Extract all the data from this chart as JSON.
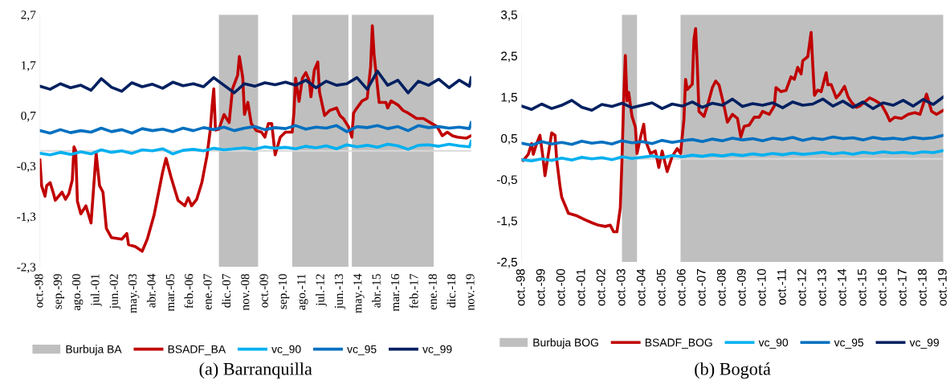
{
  "chart_data": [
    {
      "type": "line",
      "title": "(a) Barranquilla",
      "legend": "bottom",
      "marker": "none",
      "line_style": "solid",
      "grid": false,
      "xlim": [
        "1998-10",
        "2019-11"
      ],
      "xticks": [
        {
          "value": "1998-10",
          "label": "oct.-98"
        },
        {
          "value": "1999-09",
          "label": "sep.-99"
        },
        {
          "value": "2000-08",
          "label": "ago.-00"
        },
        {
          "value": "2001-07",
          "label": "jul.-01"
        },
        {
          "value": "2002-06",
          "label": "jun.-02"
        },
        {
          "value": "2003-05",
          "label": "may.-03"
        },
        {
          "value": "2004-04",
          "label": "abr.-04"
        },
        {
          "value": "2005-03",
          "label": "mar.-05"
        },
        {
          "value": "2006-02",
          "label": "feb.-06"
        },
        {
          "value": "2007-01",
          "label": "ene.-07"
        },
        {
          "value": "2007-12",
          "label": "dic.-07"
        },
        {
          "value": "2008-11",
          "label": "nov.-08"
        },
        {
          "value": "2009-10",
          "label": "oct.-09"
        },
        {
          "value": "2010-09",
          "label": "sep.-10"
        },
        {
          "value": "2011-08",
          "label": "ago.-11"
        },
        {
          "value": "2012-07",
          "label": "jul.-12"
        },
        {
          "value": "2013-06",
          "label": "jun.-13"
        },
        {
          "value": "2014-05",
          "label": "may.-14"
        },
        {
          "value": "2015-04",
          "label": "abr.-15"
        },
        {
          "value": "2016-03",
          "label": "mar.-16"
        },
        {
          "value": "2017-02",
          "label": "feb.-17"
        },
        {
          "value": "2018-01",
          "label": "ene.-18"
        },
        {
          "value": "2018-12",
          "label": "dic.-18"
        },
        {
          "value": "2019-11",
          "label": "nov.-19"
        }
      ],
      "ylim": [
        -2.3,
        2.7
      ],
      "yticks": [
        {
          "value": -2.3,
          "label": "-2,3"
        },
        {
          "value": -1.3,
          "label": "-1,3"
        },
        {
          "value": -0.3,
          "label": "-0,3"
        },
        {
          "value": 0.7,
          "label": "0,7"
        },
        {
          "value": 1.7,
          "label": "1,7"
        },
        {
          "value": 2.7,
          "label": "2,7"
        }
      ],
      "ref_lines": [
        {
          "axis": "y",
          "value": 0,
          "color": "#d9d9d9"
        }
      ],
      "bands": [
        {
          "axis": "x",
          "from": "2007-07",
          "to": "2009-06",
          "label": "Burbuja BA",
          "color": "#bfbfbf"
        },
        {
          "axis": "x",
          "from": "2011-02",
          "to": "2013-11",
          "color": "#bfbfbf"
        },
        {
          "axis": "x",
          "from": "2014-01",
          "to": "2018-01",
          "color": "#bfbfbf"
        }
      ],
      "series": [
        {
          "name": "BSADF_BA",
          "color": "#c00000",
          "x": [
            "1998-10",
            "1998-11",
            "1999-01",
            "1999-02",
            "1999-04",
            "1999-06",
            "1999-07",
            "1999-09",
            "1999-11",
            "2000-01",
            "2000-03",
            "2000-05",
            "2000-06",
            "2000-07",
            "2000-08",
            "2000-10",
            "2001-01",
            "2001-04",
            "2001-07",
            "2001-09",
            "2001-11",
            "2002-01",
            "2002-04",
            "2002-10",
            "2003-01",
            "2003-02",
            "2003-06",
            "2003-10",
            "2004-01",
            "2004-05",
            "2004-10",
            "2004-12",
            "2005-03",
            "2005-07",
            "2005-11",
            "2006-01",
            "2006-03",
            "2006-06",
            "2006-09",
            "2006-12",
            "2007-02",
            "2007-03",
            "2007-04",
            "2007-05",
            "2007-07",
            "2007-10",
            "2008-01",
            "2008-03",
            "2008-06",
            "2008-07",
            "2008-09",
            "2008-10",
            "2008-12",
            "2009-02",
            "2009-05",
            "2009-08",
            "2009-10",
            "2009-12",
            "2010-02",
            "2010-04",
            "2010-07",
            "2010-10",
            "2011-02",
            "2011-03",
            "2011-04",
            "2011-06",
            "2011-08",
            "2011-10",
            "2011-12",
            "2012-01",
            "2012-03",
            "2012-05",
            "2012-06",
            "2012-09",
            "2012-12",
            "2013-04",
            "2013-06",
            "2013-08",
            "2013-11",
            "2014-01",
            "2014-02",
            "2014-04",
            "2014-07",
            "2014-10",
            "2014-12",
            "2015-01",
            "2015-02",
            "2015-05",
            "2015-09",
            "2015-10",
            "2015-12",
            "2016-04",
            "2016-07",
            "2016-10",
            "2017-03",
            "2017-07",
            "2017-12",
            "2018-03",
            "2018-06",
            "2018-09",
            "2018-12",
            "2019-03",
            "2019-08",
            "2019-11"
          ],
          "values": [
            -0.18,
            -0.69,
            -0.9,
            -0.69,
            -0.63,
            -0.85,
            -0.98,
            -0.9,
            -0.82,
            -0.96,
            -0.85,
            -0.58,
            0.08,
            0.0,
            -1.0,
            -1.25,
            -1.09,
            -1.43,
            -0.05,
            -0.69,
            -0.82,
            -1.54,
            -1.72,
            -1.75,
            -1.64,
            -1.86,
            -1.9,
            -1.99,
            -1.75,
            -1.27,
            -0.42,
            -0.15,
            -0.53,
            -0.98,
            -1.09,
            -0.93,
            -1.09,
            -0.96,
            -0.63,
            -0.1,
            0.43,
            0.88,
            1.23,
            0.41,
            0.43,
            0.72,
            0.56,
            1.23,
            1.5,
            1.87,
            1.45,
            0.72,
            0.96,
            0.54,
            0.4,
            0.37,
            0.27,
            0.54,
            0.54,
            -0.08,
            0.27,
            0.37,
            0.37,
            0.75,
            1.44,
            0.98,
            1.44,
            1.55,
            1.39,
            1.07,
            1.6,
            1.76,
            1.17,
            0.7,
            0.8,
            0.85,
            0.7,
            0.64,
            0.48,
            0.27,
            0.75,
            0.85,
            0.99,
            1.04,
            1.66,
            2.48,
            1.92,
            0.96,
            0.96,
            0.85,
            0.99,
            0.91,
            0.8,
            0.75,
            0.64,
            0.64,
            0.54,
            0.48,
            0.3,
            0.37,
            0.3,
            0.27,
            0.25,
            0.3
          ]
        },
        {
          "name": "vc_90",
          "color": "#00b0f0",
          "x": [
            "1998-10",
            "1999-04",
            "1999-10",
            "2000-04",
            "2000-10",
            "2001-04",
            "2001-10",
            "2002-04",
            "2002-10",
            "2003-04",
            "2003-10",
            "2004-04",
            "2004-10",
            "2005-04",
            "2005-10",
            "2006-04",
            "2006-10",
            "2007-04",
            "2007-10",
            "2008-04",
            "2008-10",
            "2009-04",
            "2009-10",
            "2010-04",
            "2010-10",
            "2011-04",
            "2011-10",
            "2012-04",
            "2012-10",
            "2013-04",
            "2013-10",
            "2014-04",
            "2014-10",
            "2015-04",
            "2015-10",
            "2016-04",
            "2016-10",
            "2017-04",
            "2017-10",
            "2018-04",
            "2018-10",
            "2019-04",
            "2019-10",
            "2019-11"
          ],
          "values": [
            -0.05,
            -0.08,
            -0.03,
            -0.07,
            -0.02,
            -0.06,
            0.02,
            -0.03,
            0.0,
            -0.05,
            0.02,
            0.0,
            0.04,
            -0.06,
            0.01,
            0.03,
            0.0,
            0.05,
            0.02,
            0.04,
            0.06,
            0.03,
            0.08,
            0.05,
            0.07,
            0.04,
            0.09,
            0.06,
            0.1,
            0.04,
            0.12,
            0.08,
            0.11,
            0.07,
            0.13,
            0.1,
            0.03,
            0.11,
            0.12,
            0.09,
            0.13,
            0.1,
            0.08,
            0.19
          ]
        },
        {
          "name": "vc_95",
          "color": "#0070c0",
          "x": [
            "1998-10",
            "1999-04",
            "1999-10",
            "2000-04",
            "2000-10",
            "2001-04",
            "2001-10",
            "2002-04",
            "2002-10",
            "2003-04",
            "2003-10",
            "2004-04",
            "2004-10",
            "2005-04",
            "2005-10",
            "2006-04",
            "2006-10",
            "2007-04",
            "2007-10",
            "2008-04",
            "2008-10",
            "2009-04",
            "2009-10",
            "2010-04",
            "2010-10",
            "2011-04",
            "2011-10",
            "2012-04",
            "2012-10",
            "2013-04",
            "2013-10",
            "2014-04",
            "2014-10",
            "2015-04",
            "2015-10",
            "2016-04",
            "2016-10",
            "2017-04",
            "2017-10",
            "2018-04",
            "2018-10",
            "2019-04",
            "2019-10",
            "2019-11"
          ],
          "values": [
            0.4,
            0.35,
            0.42,
            0.36,
            0.4,
            0.37,
            0.45,
            0.38,
            0.42,
            0.35,
            0.44,
            0.4,
            0.43,
            0.38,
            0.45,
            0.4,
            0.46,
            0.42,
            0.47,
            0.4,
            0.45,
            0.48,
            0.42,
            0.46,
            0.44,
            0.5,
            0.43,
            0.47,
            0.45,
            0.5,
            0.38,
            0.48,
            0.46,
            0.5,
            0.44,
            0.48,
            0.4,
            0.5,
            0.46,
            0.48,
            0.45,
            0.47,
            0.44,
            0.56
          ]
        },
        {
          "name": "vc_99",
          "color": "#002060",
          "x": [
            "1998-10",
            "1999-04",
            "1999-10",
            "2000-04",
            "2000-10",
            "2001-04",
            "2001-10",
            "2002-04",
            "2002-10",
            "2003-04",
            "2003-10",
            "2004-04",
            "2004-10",
            "2005-04",
            "2005-10",
            "2006-04",
            "2006-10",
            "2007-04",
            "2007-10",
            "2008-04",
            "2008-10",
            "2009-04",
            "2009-10",
            "2010-04",
            "2010-10",
            "2011-04",
            "2011-10",
            "2012-04",
            "2012-10",
            "2013-04",
            "2013-10",
            "2014-04",
            "2014-10",
            "2015-04",
            "2015-10",
            "2016-04",
            "2016-10",
            "2017-04",
            "2017-10",
            "2018-04",
            "2018-10",
            "2019-04",
            "2019-10",
            "2019-11"
          ],
          "values": [
            1.28,
            1.22,
            1.33,
            1.25,
            1.3,
            1.2,
            1.43,
            1.26,
            1.18,
            1.35,
            1.27,
            1.32,
            1.24,
            1.36,
            1.29,
            1.33,
            1.27,
            1.45,
            1.3,
            1.15,
            1.33,
            1.28,
            1.35,
            1.31,
            1.36,
            1.3,
            1.4,
            1.25,
            1.38,
            1.3,
            1.33,
            1.45,
            1.22,
            1.58,
            1.3,
            1.4,
            1.15,
            1.38,
            1.3,
            1.42,
            1.25,
            1.4,
            1.28,
            1.45
          ]
        }
      ]
    },
    {
      "type": "line",
      "title": "(b) Bogotá",
      "legend": "bottom",
      "marker": "none",
      "line_style": "solid",
      "grid": false,
      "xlim": [
        "1998-10",
        "2019-10"
      ],
      "xticks": [
        {
          "value": "1998-10",
          "label": "oct.-98"
        },
        {
          "value": "1999-10",
          "label": "oct.-99"
        },
        {
          "value": "2000-10",
          "label": "oct.-00"
        },
        {
          "value": "2001-10",
          "label": "oct.-01"
        },
        {
          "value": "2002-10",
          "label": "oct.-02"
        },
        {
          "value": "2003-10",
          "label": "oct.-03"
        },
        {
          "value": "2004-10",
          "label": "oct.-04"
        },
        {
          "value": "2005-10",
          "label": "oct.-05"
        },
        {
          "value": "2006-10",
          "label": "oct.-06"
        },
        {
          "value": "2007-10",
          "label": "oct.-07"
        },
        {
          "value": "2008-10",
          "label": "oct.-08"
        },
        {
          "value": "2009-10",
          "label": "oct.-09"
        },
        {
          "value": "2010-10",
          "label": "oct.-10"
        },
        {
          "value": "2011-10",
          "label": "oct.-11"
        },
        {
          "value": "2012-10",
          "label": "oct.-12"
        },
        {
          "value": "2013-10",
          "label": "oct.-13"
        },
        {
          "value": "2014-10",
          "label": "oct.-14"
        },
        {
          "value": "2015-10",
          "label": "oct.-15"
        },
        {
          "value": "2016-10",
          "label": "oct.-16"
        },
        {
          "value": "2017-10",
          "label": "oct.-17"
        },
        {
          "value": "2018-10",
          "label": "oct.-18"
        },
        {
          "value": "2019-10",
          "label": "oct.-19"
        }
      ],
      "ylim": [
        -2.5,
        3.5
      ],
      "yticks": [
        {
          "value": -2.5,
          "label": "-2,5"
        },
        {
          "value": -1.5,
          "label": "-1,5"
        },
        {
          "value": -0.5,
          "label": "-0,5"
        },
        {
          "value": 0.5,
          "label": "0,5"
        },
        {
          "value": 1.5,
          "label": "1,5"
        },
        {
          "value": 2.5,
          "label": "2,5"
        },
        {
          "value": 3.5,
          "label": "3,5"
        }
      ],
      "ref_lines": [
        {
          "axis": "y",
          "value": 0,
          "color": "#d9d9d9"
        }
      ],
      "bands": [
        {
          "axis": "x",
          "from": "2003-10",
          "to": "2004-07",
          "label": "Burbuja BOG",
          "color": "#bfbfbf"
        },
        {
          "axis": "x",
          "from": "2006-09",
          "to": "2019-10",
          "color": "#bfbfbf"
        }
      ],
      "series": [
        {
          "name": "BSADF_BOG",
          "color": "#c00000",
          "x": [
            "1998-10",
            "1998-11",
            "1999-02",
            "1999-04",
            "1999-05",
            "1999-07",
            "1999-09",
            "1999-11",
            "1999-12",
            "2000-02",
            "2000-04",
            "2000-06",
            "2000-07",
            "2000-09",
            "2000-10",
            "2001-02",
            "2001-07",
            "2001-12",
            "2002-04",
            "2002-08",
            "2002-12",
            "2003-03",
            "2003-05",
            "2003-07",
            "2003-09",
            "2003-10",
            "2003-11",
            "2003-12",
            "2004-01",
            "2004-02",
            "2004-04",
            "2004-06",
            "2004-07",
            "2004-09",
            "2004-11",
            "2004-12",
            "2005-03",
            "2005-06",
            "2005-08",
            "2005-10",
            "2006-01",
            "2006-04",
            "2006-07",
            "2006-09",
            "2006-11",
            "2006-12",
            "2007-01",
            "2007-04",
            "2007-05",
            "2007-06",
            "2007-07",
            "2007-08",
            "2007-11",
            "2008-01",
            "2008-04",
            "2008-06",
            "2008-08",
            "2008-11",
            "2009-01",
            "2009-04",
            "2009-07",
            "2009-09",
            "2009-11",
            "2010-02",
            "2010-05",
            "2010-08",
            "2010-10",
            "2011-02",
            "2011-05",
            "2011-06",
            "2011-09",
            "2011-12",
            "2012-03",
            "2012-05",
            "2012-07",
            "2012-09",
            "2012-10",
            "2013-01",
            "2013-03",
            "2013-04",
            "2013-05",
            "2013-07",
            "2013-09",
            "2013-12",
            "2014-01",
            "2014-03",
            "2014-06",
            "2014-08",
            "2014-11",
            "2015-01",
            "2015-03",
            "2015-06",
            "2015-08",
            "2015-11",
            "2016-02",
            "2016-05",
            "2016-09",
            "2016-12",
            "2017-02",
            "2017-05",
            "2017-09",
            "2018-01",
            "2018-05",
            "2018-08",
            "2018-12",
            "2019-03",
            "2019-06",
            "2019-10"
          ],
          "values": [
            -0.02,
            -0.04,
            0.11,
            0.37,
            0.11,
            0.37,
            0.57,
            -0.03,
            -0.41,
            0.11,
            0.63,
            0.57,
            -0.02,
            -0.67,
            -0.93,
            -1.32,
            -1.38,
            -1.48,
            -1.55,
            -1.61,
            -1.64,
            -1.61,
            -1.77,
            -1.77,
            -1.19,
            -0.02,
            1.41,
            2.51,
            1.41,
            1.61,
            1.03,
            0.77,
            0.13,
            0.51,
            0.84,
            0.45,
            0.13,
            0.19,
            -0.21,
            0.19,
            -0.31,
            0.06,
            0.25,
            0.13,
            0.95,
            1.93,
            1.68,
            1.81,
            2.9,
            3.16,
            2.27,
            1.15,
            1.03,
            1.28,
            1.73,
            1.89,
            1.79,
            1.28,
            0.89,
            1.08,
            0.98,
            0.53,
            0.79,
            0.82,
            1.01,
            1.01,
            1.15,
            1.08,
            1.28,
            1.73,
            1.63,
            1.66,
            1.99,
            1.93,
            2.22,
            2.06,
            2.38,
            2.48,
            3.07,
            2.27,
            1.54,
            1.67,
            1.63,
            2.09,
            1.8,
            1.8,
            1.48,
            1.57,
            1.76,
            1.51,
            1.38,
            1.25,
            1.28,
            1.38,
            1.48,
            1.42,
            1.32,
            1.1,
            0.92,
            1.01,
            0.98,
            1.08,
            1.12,
            1.08,
            1.57,
            1.15,
            1.08,
            1.18
          ]
        },
        {
          "name": "vc_90",
          "color": "#00b0f0",
          "x": [
            "1998-10",
            "1999-04",
            "1999-10",
            "2000-04",
            "2000-10",
            "2001-04",
            "2001-10",
            "2002-04",
            "2002-10",
            "2003-04",
            "2003-10",
            "2004-04",
            "2004-10",
            "2005-04",
            "2005-10",
            "2006-04",
            "2006-10",
            "2007-04",
            "2007-10",
            "2008-04",
            "2008-10",
            "2009-04",
            "2009-10",
            "2010-04",
            "2010-10",
            "2011-04",
            "2011-10",
            "2012-04",
            "2012-10",
            "2013-04",
            "2013-10",
            "2014-04",
            "2014-10",
            "2015-04",
            "2015-10",
            "2016-04",
            "2016-10",
            "2017-04",
            "2017-10",
            "2018-04",
            "2018-10",
            "2019-04",
            "2019-10"
          ],
          "values": [
            -0.02,
            -0.05,
            0.0,
            -0.04,
            0.02,
            -0.03,
            0.04,
            0.0,
            0.03,
            -0.02,
            0.05,
            0.01,
            0.04,
            0.07,
            0.03,
            0.08,
            0.05,
            0.09,
            0.06,
            0.1,
            0.07,
            0.11,
            0.08,
            0.12,
            0.09,
            0.13,
            0.1,
            0.14,
            0.11,
            0.13,
            0.16,
            0.12,
            0.15,
            0.11,
            0.16,
            0.13,
            0.17,
            0.14,
            0.16,
            0.13,
            0.17,
            0.15,
            0.2
          ]
        },
        {
          "name": "vc_95",
          "color": "#0070c0",
          "x": [
            "1998-10",
            "1999-04",
            "1999-10",
            "2000-04",
            "2000-10",
            "2001-04",
            "2001-10",
            "2002-04",
            "2002-10",
            "2003-04",
            "2003-10",
            "2004-04",
            "2004-10",
            "2005-04",
            "2005-10",
            "2006-04",
            "2006-10",
            "2007-04",
            "2007-10",
            "2008-04",
            "2008-10",
            "2009-04",
            "2009-10",
            "2010-04",
            "2010-10",
            "2011-04",
            "2011-10",
            "2012-04",
            "2012-10",
            "2013-04",
            "2013-10",
            "2014-04",
            "2014-10",
            "2015-04",
            "2015-10",
            "2016-04",
            "2016-10",
            "2017-04",
            "2017-10",
            "2018-04",
            "2018-10",
            "2019-04",
            "2019-10"
          ],
          "values": [
            0.38,
            0.33,
            0.42,
            0.36,
            0.4,
            0.35,
            0.43,
            0.38,
            0.41,
            0.36,
            0.44,
            0.39,
            0.42,
            0.37,
            0.45,
            0.4,
            0.44,
            0.47,
            0.42,
            0.48,
            0.44,
            0.5,
            0.46,
            0.49,
            0.44,
            0.5,
            0.47,
            0.52,
            0.45,
            0.5,
            0.47,
            0.53,
            0.49,
            0.51,
            0.46,
            0.52,
            0.48,
            0.5,
            0.47,
            0.52,
            0.49,
            0.51,
            0.57
          ]
        },
        {
          "name": "vc_99",
          "color": "#002060",
          "x": [
            "1998-10",
            "1999-04",
            "1999-10",
            "2000-04",
            "2000-10",
            "2001-04",
            "2001-10",
            "2002-04",
            "2002-10",
            "2003-04",
            "2003-10",
            "2004-04",
            "2004-10",
            "2005-04",
            "2005-10",
            "2006-04",
            "2006-10",
            "2007-04",
            "2007-10",
            "2008-04",
            "2008-10",
            "2009-04",
            "2009-10",
            "2010-04",
            "2010-10",
            "2011-04",
            "2011-10",
            "2012-04",
            "2012-10",
            "2013-04",
            "2013-10",
            "2014-04",
            "2014-10",
            "2015-04",
            "2015-10",
            "2016-04",
            "2016-10",
            "2017-04",
            "2017-10",
            "2018-04",
            "2018-10",
            "2019-04",
            "2019-10"
          ],
          "values": [
            1.28,
            1.2,
            1.33,
            1.22,
            1.3,
            1.42,
            1.25,
            1.18,
            1.32,
            1.27,
            1.35,
            1.24,
            1.3,
            1.36,
            1.22,
            1.33,
            1.28,
            1.38,
            1.25,
            1.35,
            1.3,
            1.45,
            1.27,
            1.34,
            1.3,
            1.36,
            1.24,
            1.38,
            1.3,
            1.33,
            1.45,
            1.28,
            1.4,
            1.25,
            1.38,
            1.22,
            1.36,
            1.3,
            1.42,
            1.28,
            1.44,
            1.32,
            1.5
          ]
        }
      ]
    }
  ]
}
